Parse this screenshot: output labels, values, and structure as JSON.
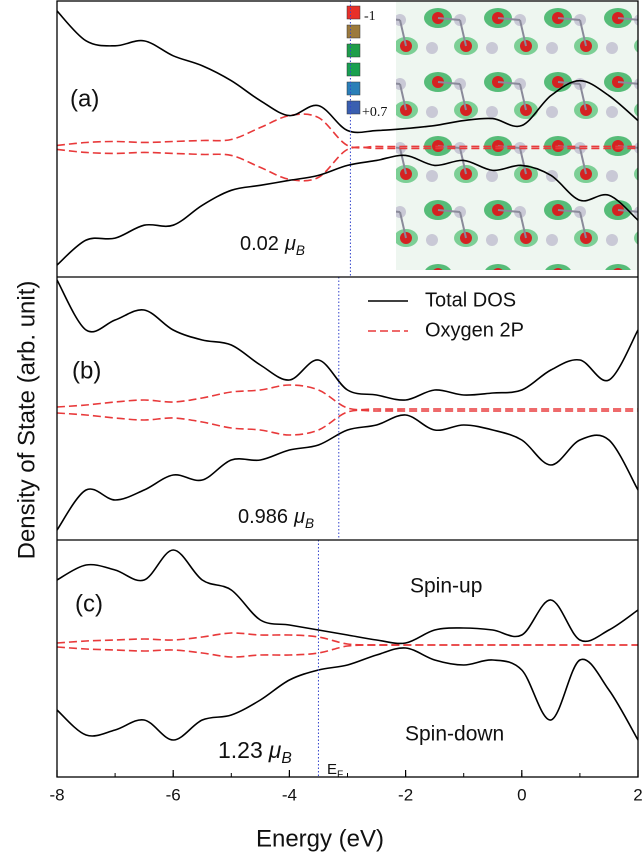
{
  "chart_data": [
    {
      "type": "line",
      "label": "(a)",
      "moment": "0.02",
      "moment_unit": "μ",
      "moment_unit_sub": "B",
      "ef": -2.95,
      "ylim": [
        -1.3,
        1.47
      ],
      "total_up": [
        1.37,
        1.07,
        1.02,
        1.07,
        0.92,
        0.82,
        0.67,
        0.47,
        0.32,
        0.42,
        0.17,
        0.17,
        0.19,
        0.22,
        0.27,
        0.29,
        0.22,
        0.52,
        0.67,
        0.52,
        0.27
      ],
      "total_down": [
        -1.18,
        -0.93,
        -0.91,
        -0.78,
        -0.78,
        -0.58,
        -0.43,
        -0.38,
        -0.33,
        -0.28,
        -0.18,
        -0.13,
        -0.08,
        -0.18,
        -0.13,
        -0.23,
        -0.18,
        -0.28,
        -0.53,
        -0.48,
        -0.73
      ],
      "oxygen_up": [
        0.02,
        0.05,
        0.06,
        0.05,
        0.06,
        0.07,
        0.08,
        0.2,
        0.32,
        0.3,
        0.02,
        0.01,
        0.01,
        0.01,
        0.01,
        0.01,
        0.01,
        0.01,
        0.01,
        0.01,
        0.01
      ],
      "oxygen_down": [
        -0.02,
        -0.05,
        -0.06,
        -0.05,
        -0.06,
        -0.07,
        -0.08,
        -0.2,
        -0.32,
        -0.3,
        -0.02,
        -0.01,
        -0.01,
        -0.01,
        -0.01,
        -0.01,
        -0.01,
        -0.01,
        -0.01,
        -0.01,
        -0.01
      ],
      "inset": {
        "scale_labels": [
          "-1",
          "+0.7"
        ],
        "colors": [
          "#e8302a",
          "#9c7a3c",
          "#1e9e4a",
          "#18a050",
          "#2a7fb8",
          "#3a5fb0"
        ]
      }
    },
    {
      "type": "line",
      "label": "(b)",
      "moment": "0.986",
      "moment_unit": "μ",
      "moment_unit_sub": "B",
      "ef": -3.15,
      "ylim": [
        -1.3,
        1.33
      ],
      "total_up": [
        1.3,
        0.8,
        0.9,
        1.0,
        0.8,
        0.7,
        0.65,
        0.45,
        0.3,
        0.5,
        0.2,
        0.15,
        0.1,
        0.2,
        0.15,
        0.17,
        0.2,
        0.4,
        0.5,
        0.3,
        0.8
      ],
      "total_down": [
        -1.2,
        -0.8,
        -0.9,
        -0.8,
        -0.65,
        -0.7,
        -0.5,
        -0.5,
        -0.4,
        -0.35,
        -0.2,
        -0.15,
        -0.05,
        -0.2,
        -0.15,
        -0.2,
        -0.3,
        -0.55,
        -0.3,
        -0.3,
        -0.8
      ],
      "oxygen_up": [
        0.03,
        0.05,
        0.08,
        0.1,
        0.08,
        0.12,
        0.18,
        0.2,
        0.25,
        0.2,
        0.02,
        0.01,
        0.01,
        0.01,
        0.01,
        0.01,
        0.01,
        0.01,
        0.01,
        0.01,
        0.01
      ],
      "oxygen_down": [
        -0.03,
        -0.05,
        -0.08,
        -0.1,
        -0.08,
        -0.12,
        -0.18,
        -0.2,
        -0.25,
        -0.2,
        -0.02,
        -0.01,
        -0.01,
        -0.01,
        -0.01,
        -0.01,
        -0.01,
        -0.01,
        -0.01,
        -0.01,
        -0.01
      ]
    },
    {
      "type": "line",
      "label": "(c)",
      "moment": "1.23",
      "moment_unit": "μ",
      "moment_unit_sub": "B",
      "ef": -3.5,
      "ef_label": "E",
      "ef_label_sub": "F",
      "spin_up": "Spin-up",
      "spin_down": "Spin-down",
      "ylim": [
        -1.32,
        1.05
      ],
      "total_up": [
        0.65,
        0.8,
        0.75,
        0.65,
        0.95,
        0.65,
        0.55,
        0.25,
        0.2,
        0.15,
        0.1,
        0.05,
        0.02,
        0.15,
        0.17,
        0.15,
        0.1,
        0.45,
        0.05,
        0.15,
        0.35
      ],
      "total_down": [
        -0.65,
        -0.9,
        -0.85,
        -0.75,
        -0.95,
        -0.75,
        -0.7,
        -0.55,
        -0.35,
        -0.25,
        -0.2,
        -0.1,
        -0.03,
        -0.15,
        -0.2,
        -0.15,
        -0.25,
        -0.75,
        -0.15,
        -0.45,
        -0.95
      ],
      "oxygen_up": [
        0.02,
        0.04,
        0.05,
        0.06,
        0.05,
        0.08,
        0.12,
        0.1,
        0.1,
        0.08,
        0.01,
        0,
        0,
        0,
        0,
        0,
        0,
        0,
        0,
        0,
        0
      ],
      "oxygen_down": [
        -0.02,
        -0.04,
        -0.05,
        -0.06,
        -0.05,
        -0.08,
        -0.12,
        -0.1,
        -0.1,
        -0.08,
        -0.01,
        0,
        0,
        0,
        0,
        0,
        0,
        0,
        0,
        0,
        0
      ]
    }
  ],
  "x": [
    -8,
    -7.5,
    -7,
    -6.5,
    -6,
    -5.5,
    -5,
    -4.5,
    -4,
    -3.5,
    -3,
    -2.5,
    -2,
    -1.5,
    -1,
    -0.5,
    0,
    0.5,
    1,
    1.5,
    2
  ],
  "xlim": [
    -8,
    2
  ],
  "xticks": [
    -8,
    -6,
    -4,
    -2,
    0,
    2
  ],
  "x_label": "Energy (eV)",
  "y_label": "Density of State (arb. unit)",
  "legend": [
    {
      "name": "Total DOS",
      "color": "#000000",
      "dashed": false
    },
    {
      "name": "Oxygen 2P",
      "color": "#e8393a",
      "dashed": true
    }
  ]
}
